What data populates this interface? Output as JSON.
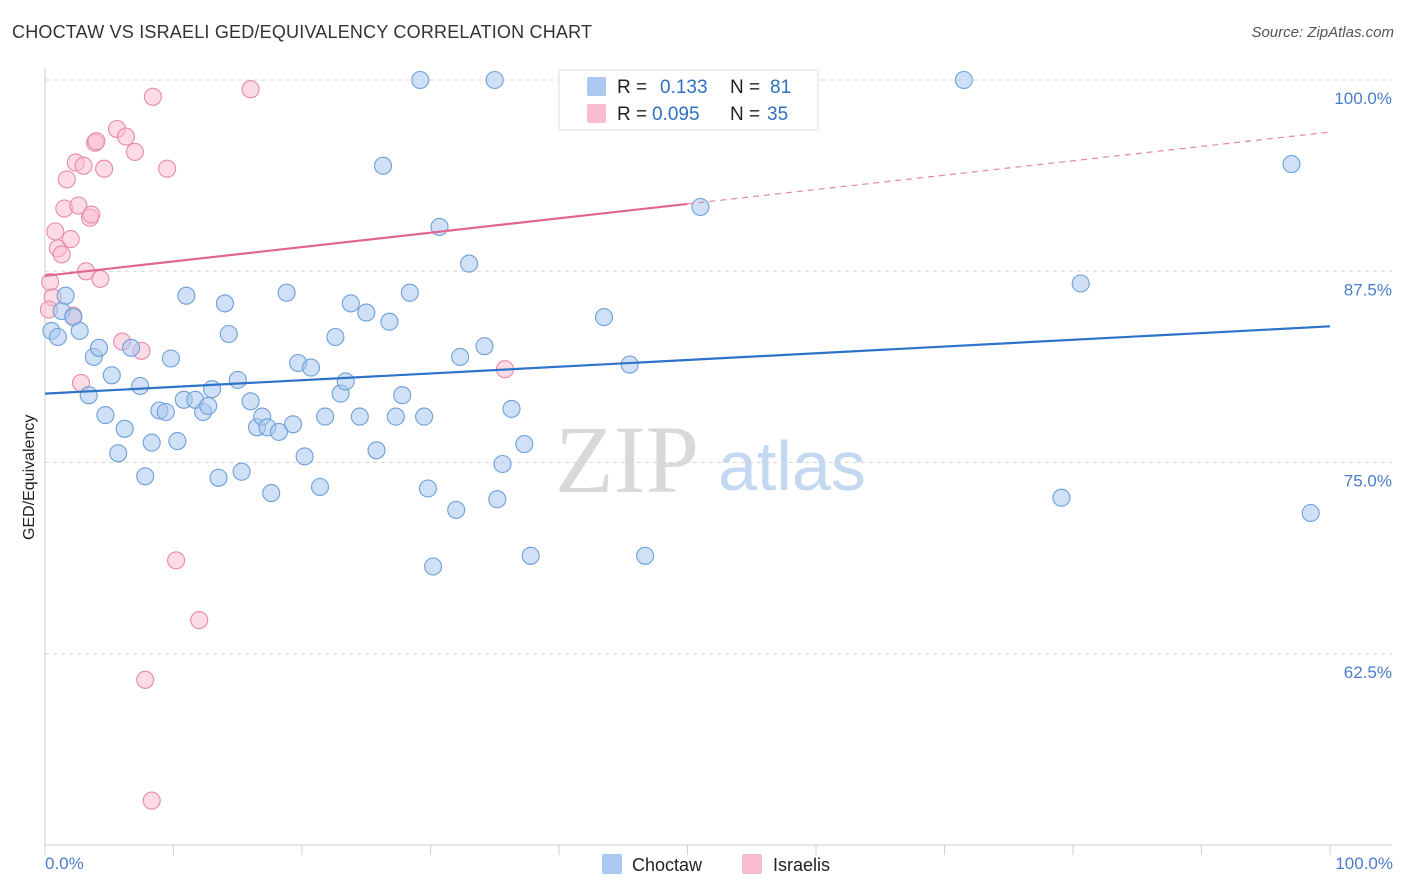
{
  "header": {
    "title": "CHOCTAW VS ISRAELI GED/EQUIVALENCY CORRELATION CHART",
    "source": "Source: ZipAtlas.com"
  },
  "watermark": {
    "zip": "ZIP",
    "atlas": "atlas"
  },
  "legend_top": {
    "rows": [
      {
        "r_label": "R =",
        "r_value": "0.133",
        "n_label": "N =",
        "n_value": "81",
        "color": "#aac8f0",
        "stroke": "#6e9fd8"
      },
      {
        "r_label": "R =",
        "r_value": "0.095",
        "n_label": "N =",
        "n_value": "35",
        "color": "#f9bdd0",
        "stroke": "#e88aa8"
      }
    ]
  },
  "legend_bottom": {
    "items": [
      "Choctaw",
      "Israelis"
    ]
  },
  "colors": {
    "choctaw_fill": "#aac8f0",
    "choctaw_stroke": "#6e9fd8",
    "choctaw_line": "#2f73c8",
    "israeli_fill": "#f9bdd0",
    "israeli_stroke": "#e88aa8",
    "israeli_line": "#e0668e",
    "value_text": "#2f6fc4",
    "grid": "#d6d6d6"
  },
  "chart_data": {
    "type": "scatter",
    "title": "CHOCTAW VS ISRAELI GED/EQUIVALENCY CORRELATION CHART",
    "xlabel": "",
    "ylabel": "GED/Equivalency",
    "xlim": [
      0,
      100
    ],
    "ylim": [
      50.0,
      102.3
    ],
    "x_tick_labels": [
      "0.0%",
      "100.0%"
    ],
    "y_ticks": [
      62.5,
      75.0,
      87.5,
      100.0
    ],
    "y_tick_labels": [
      "62.5%",
      "75.0%",
      "87.5%",
      "100.0%"
    ],
    "grid": true,
    "legend": "top-center",
    "series": [
      {
        "name": "Choctaw",
        "trend": {
          "x": [
            0,
            100
          ],
          "y": [
            79.5,
            83.9
          ]
        },
        "points": [
          [
            0.5,
            83.6
          ],
          [
            1.0,
            83.2
          ],
          [
            1.3,
            84.9
          ],
          [
            1.6,
            85.9
          ],
          [
            2.2,
            84.5
          ],
          [
            2.7,
            83.6
          ],
          [
            3.4,
            79.4
          ],
          [
            3.8,
            81.9
          ],
          [
            4.2,
            82.5
          ],
          [
            4.7,
            78.1
          ],
          [
            5.2,
            80.7
          ],
          [
            5.7,
            75.6
          ],
          [
            6.2,
            77.2
          ],
          [
            6.7,
            82.5
          ],
          [
            7.4,
            80.0
          ],
          [
            7.8,
            74.1
          ],
          [
            8.3,
            76.3
          ],
          [
            8.9,
            78.4
          ],
          [
            9.4,
            78.3
          ],
          [
            9.8,
            81.8
          ],
          [
            10.3,
            76.4
          ],
          [
            10.8,
            79.1
          ],
          [
            11.0,
            85.9
          ],
          [
            11.7,
            79.1
          ],
          [
            12.3,
            78.3
          ],
          [
            12.7,
            78.7
          ],
          [
            13.0,
            79.8
          ],
          [
            13.5,
            74.0
          ],
          [
            14.0,
            85.4
          ],
          [
            14.3,
            83.4
          ],
          [
            15.0,
            80.4
          ],
          [
            15.3,
            74.4
          ],
          [
            16.0,
            79.0
          ],
          [
            16.5,
            77.3
          ],
          [
            16.9,
            78.0
          ],
          [
            17.3,
            77.3
          ],
          [
            17.6,
            73.0
          ],
          [
            18.2,
            77.0
          ],
          [
            18.8,
            86.1
          ],
          [
            19.3,
            77.5
          ],
          [
            19.7,
            81.5
          ],
          [
            20.2,
            75.4
          ],
          [
            20.7,
            81.2
          ],
          [
            21.4,
            73.4
          ],
          [
            21.8,
            78.0
          ],
          [
            22.6,
            83.2
          ],
          [
            23.0,
            79.5
          ],
          [
            23.4,
            80.3
          ],
          [
            23.8,
            85.4
          ],
          [
            24.5,
            78.0
          ],
          [
            25.0,
            84.8
          ],
          [
            25.8,
            75.8
          ],
          [
            26.8,
            84.2
          ],
          [
            27.3,
            78.0
          ],
          [
            27.8,
            79.4
          ],
          [
            28.4,
            86.1
          ],
          [
            29.2,
            100.0
          ],
          [
            29.5,
            78.0
          ],
          [
            29.8,
            73.3
          ],
          [
            30.2,
            68.2
          ],
          [
            30.7,
            90.4
          ],
          [
            32.0,
            71.9
          ],
          [
            32.3,
            81.9
          ],
          [
            33.0,
            88.0
          ],
          [
            34.2,
            82.6
          ],
          [
            35.0,
            100.0
          ],
          [
            35.2,
            72.6
          ],
          [
            35.6,
            74.9
          ],
          [
            36.3,
            78.5
          ],
          [
            37.3,
            76.2
          ],
          [
            37.8,
            68.9
          ],
          [
            43.5,
            84.5
          ],
          [
            45.5,
            81.4
          ],
          [
            46.7,
            68.9
          ],
          [
            51.0,
            91.7
          ],
          [
            71.5,
            100.0
          ],
          [
            79.1,
            72.7
          ],
          [
            80.6,
            86.7
          ],
          [
            97.0,
            94.5
          ],
          [
            98.5,
            71.7
          ],
          [
            26.3,
            94.4
          ]
        ]
      },
      {
        "name": "Israelis",
        "trend": {
          "x": [
            0,
            50
          ],
          "y": [
            87.2,
            91.9
          ]
        },
        "trend_extension": {
          "x": [
            50,
            100
          ],
          "y": [
            91.9,
            96.6
          ]
        },
        "points": [
          [
            0.4,
            86.8
          ],
          [
            0.6,
            85.8
          ],
          [
            0.8,
            90.1
          ],
          [
            1.0,
            89.0
          ],
          [
            1.3,
            88.6
          ],
          [
            1.5,
            91.6
          ],
          [
            1.7,
            93.5
          ],
          [
            2.0,
            89.6
          ],
          [
            2.2,
            84.6
          ],
          [
            2.4,
            94.6
          ],
          [
            2.6,
            91.8
          ],
          [
            2.8,
            80.2
          ],
          [
            3.0,
            94.4
          ],
          [
            3.2,
            87.5
          ],
          [
            3.5,
            91.0
          ],
          [
            3.6,
            91.2
          ],
          [
            3.9,
            95.9
          ],
          [
            4.0,
            96.0
          ],
          [
            4.3,
            87.0
          ],
          [
            4.6,
            94.2
          ],
          [
            5.6,
            96.8
          ],
          [
            6.0,
            82.9
          ],
          [
            6.3,
            96.3
          ],
          [
            7.0,
            95.3
          ],
          [
            7.5,
            82.3
          ],
          [
            7.8,
            60.8
          ],
          [
            8.3,
            52.9
          ],
          [
            8.4,
            98.9
          ],
          [
            9.5,
            94.2
          ],
          [
            10.2,
            68.6
          ],
          [
            12.0,
            64.7
          ],
          [
            16.0,
            99.4
          ],
          [
            35.8,
            81.1
          ],
          [
            45.0,
            100.0
          ],
          [
            0.3,
            85.0
          ]
        ]
      }
    ]
  }
}
